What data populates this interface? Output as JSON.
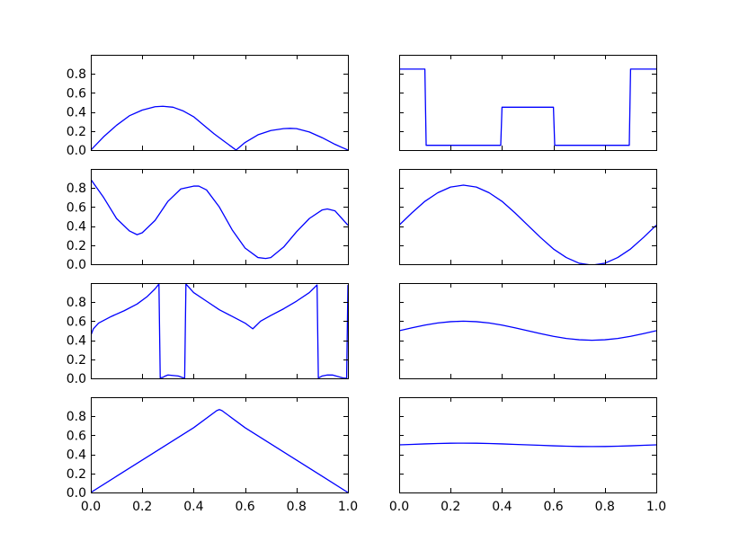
{
  "chart_data": [
    {
      "type": "line",
      "grid": false,
      "xlim": [
        0.0,
        1.0
      ],
      "ylim": [
        0.0,
        1.0
      ],
      "yticks": [
        "0.0",
        "0.2",
        "0.4",
        "0.6",
        "0.8"
      ],
      "series": [
        {
          "color": "#0000ff",
          "x": [
            0,
            0.05,
            0.1,
            0.15,
            0.2,
            0.25,
            0.28,
            0.32,
            0.36,
            0.4,
            0.44,
            0.48,
            0.52,
            0.56,
            0.565,
            0.6,
            0.65,
            0.7,
            0.75,
            0.775,
            0.8,
            0.85,
            0.9,
            0.95,
            1.0
          ],
          "y": [
            0,
            0.14,
            0.26,
            0.36,
            0.42,
            0.455,
            0.46,
            0.45,
            0.41,
            0.35,
            0.26,
            0.17,
            0.09,
            0.01,
            0.0,
            0.08,
            0.16,
            0.205,
            0.225,
            0.228,
            0.225,
            0.19,
            0.13,
            0.06,
            0.0
          ]
        }
      ]
    },
    {
      "type": "line",
      "grid": false,
      "xlim": [
        0.0,
        1.0
      ],
      "ylim": [
        0.0,
        1.0
      ],
      "series": [
        {
          "color": "#0000ff",
          "x": [
            0,
            0.1,
            0.105,
            0.395,
            0.4,
            0.6,
            0.605,
            0.895,
            0.9,
            1.0
          ],
          "y": [
            0.85,
            0.85,
            0.05,
            0.05,
            0.45,
            0.45,
            0.05,
            0.05,
            0.85,
            0.85
          ]
        }
      ]
    },
    {
      "type": "line",
      "grid": false,
      "xlim": [
        0.0,
        1.0
      ],
      "ylim": [
        0.0,
        1.0
      ],
      "yticks": [
        "0.0",
        "0.2",
        "0.4",
        "0.6",
        "0.8"
      ],
      "series": [
        {
          "color": "#0000ff",
          "x": [
            0,
            0.05,
            0.1,
            0.15,
            0.18,
            0.2,
            0.25,
            0.3,
            0.35,
            0.4,
            0.42,
            0.45,
            0.5,
            0.55,
            0.6,
            0.65,
            0.68,
            0.7,
            0.75,
            0.8,
            0.85,
            0.9,
            0.92,
            0.95,
            1.0
          ],
          "y": [
            0.89,
            0.7,
            0.48,
            0.35,
            0.31,
            0.33,
            0.46,
            0.66,
            0.79,
            0.82,
            0.82,
            0.78,
            0.6,
            0.36,
            0.17,
            0.07,
            0.06,
            0.07,
            0.18,
            0.34,
            0.48,
            0.57,
            0.58,
            0.56,
            0.41
          ]
        }
      ]
    },
    {
      "type": "line",
      "grid": false,
      "xlim": [
        0.0,
        1.0
      ],
      "ylim": [
        0.0,
        1.0
      ],
      "series": [
        {
          "color": "#0000ff",
          "x": [
            0,
            0.05,
            0.1,
            0.15,
            0.2,
            0.25,
            0.3,
            0.35,
            0.4,
            0.45,
            0.5,
            0.55,
            0.6,
            0.65,
            0.7,
            0.75,
            0.8,
            0.85,
            0.9,
            0.95,
            1.0
          ],
          "y": [
            0.41,
            0.54,
            0.66,
            0.75,
            0.81,
            0.83,
            0.81,
            0.75,
            0.66,
            0.54,
            0.41,
            0.28,
            0.16,
            0.07,
            0.01,
            -0.01,
            0.01,
            0.07,
            0.16,
            0.28,
            0.41
          ]
        }
      ]
    },
    {
      "type": "line",
      "grid": false,
      "xlim": [
        0.0,
        1.0
      ],
      "ylim": [
        0.0,
        1.0
      ],
      "yticks": [
        "0.0",
        "0.2",
        "0.4",
        "0.6",
        "0.8"
      ],
      "series": [
        {
          "color": "#0000ff",
          "x": [
            0,
            0.01,
            0.03,
            0.08,
            0.13,
            0.18,
            0.22,
            0.25,
            0.265,
            0.27,
            0.28,
            0.29,
            0.3,
            0.34,
            0.36,
            0.365,
            0.37,
            0.4,
            0.45,
            0.5,
            0.55,
            0.6,
            0.63,
            0.66,
            0.7,
            0.75,
            0.8,
            0.85,
            0.88,
            0.885,
            0.89,
            0.9,
            0.92,
            0.94,
            0.96,
            0.98,
            0.995,
            1.0
          ],
          "y": [
            0.45,
            0.52,
            0.58,
            0.65,
            0.71,
            0.78,
            0.86,
            0.94,
            0.99,
            0.005,
            0.01,
            0.025,
            0.035,
            0.025,
            0.005,
            0.0,
            0.99,
            0.9,
            0.81,
            0.72,
            0.65,
            0.58,
            0.52,
            0.6,
            0.66,
            0.73,
            0.81,
            0.9,
            0.98,
            0.005,
            0.01,
            0.025,
            0.035,
            0.035,
            0.02,
            0.005,
            0.0,
            0.98
          ]
        }
      ]
    },
    {
      "type": "line",
      "grid": false,
      "xlim": [
        0.0,
        1.0
      ],
      "ylim": [
        0.0,
        1.0
      ],
      "series": [
        {
          "color": "#0000ff",
          "x": [
            0,
            0.05,
            0.1,
            0.15,
            0.2,
            0.25,
            0.3,
            0.35,
            0.4,
            0.45,
            0.5,
            0.55,
            0.6,
            0.65,
            0.7,
            0.75,
            0.8,
            0.85,
            0.9,
            0.95,
            1.0
          ],
          "y": [
            0.5,
            0.531,
            0.559,
            0.581,
            0.595,
            0.6,
            0.595,
            0.581,
            0.559,
            0.531,
            0.5,
            0.469,
            0.441,
            0.419,
            0.405,
            0.4,
            0.405,
            0.419,
            0.441,
            0.469,
            0.5
          ]
        }
      ]
    },
    {
      "type": "line",
      "grid": false,
      "xlim": [
        0.0,
        1.0
      ],
      "ylim": [
        0.0,
        1.0
      ],
      "yticks": [
        "0.0",
        "0.2",
        "0.4",
        "0.6",
        "0.8"
      ],
      "xticks": [
        "0.0",
        "0.2",
        "0.4",
        "0.6",
        "0.8",
        "1.0"
      ],
      "series": [
        {
          "color": "#0000ff",
          "x": [
            0,
            0.1,
            0.2,
            0.3,
            0.4,
            0.49,
            0.5,
            0.51,
            0.6,
            0.7,
            0.8,
            0.9,
            1.0
          ],
          "y": [
            0,
            0.17,
            0.34,
            0.51,
            0.68,
            0.86,
            0.87,
            0.86,
            0.68,
            0.51,
            0.34,
            0.17,
            0.0
          ]
        }
      ]
    },
    {
      "type": "line",
      "grid": false,
      "xlim": [
        0.0,
        1.0
      ],
      "ylim": [
        0.0,
        1.0
      ],
      "xticks": [
        "0.0",
        "0.2",
        "0.4",
        "0.6",
        "0.8",
        "1.0"
      ],
      "series": [
        {
          "color": "#0000ff",
          "x": [
            0,
            0.05,
            0.1,
            0.15,
            0.2,
            0.25,
            0.3,
            0.35,
            0.4,
            0.45,
            0.5,
            0.55,
            0.6,
            0.65,
            0.7,
            0.75,
            0.8,
            0.85,
            0.9,
            0.95,
            1.0
          ],
          "y": [
            0.5,
            0.505,
            0.51,
            0.514,
            0.517,
            0.518,
            0.517,
            0.514,
            0.51,
            0.505,
            0.5,
            0.495,
            0.49,
            0.486,
            0.483,
            0.482,
            0.483,
            0.486,
            0.49,
            0.495,
            0.5
          ]
        }
      ]
    }
  ]
}
